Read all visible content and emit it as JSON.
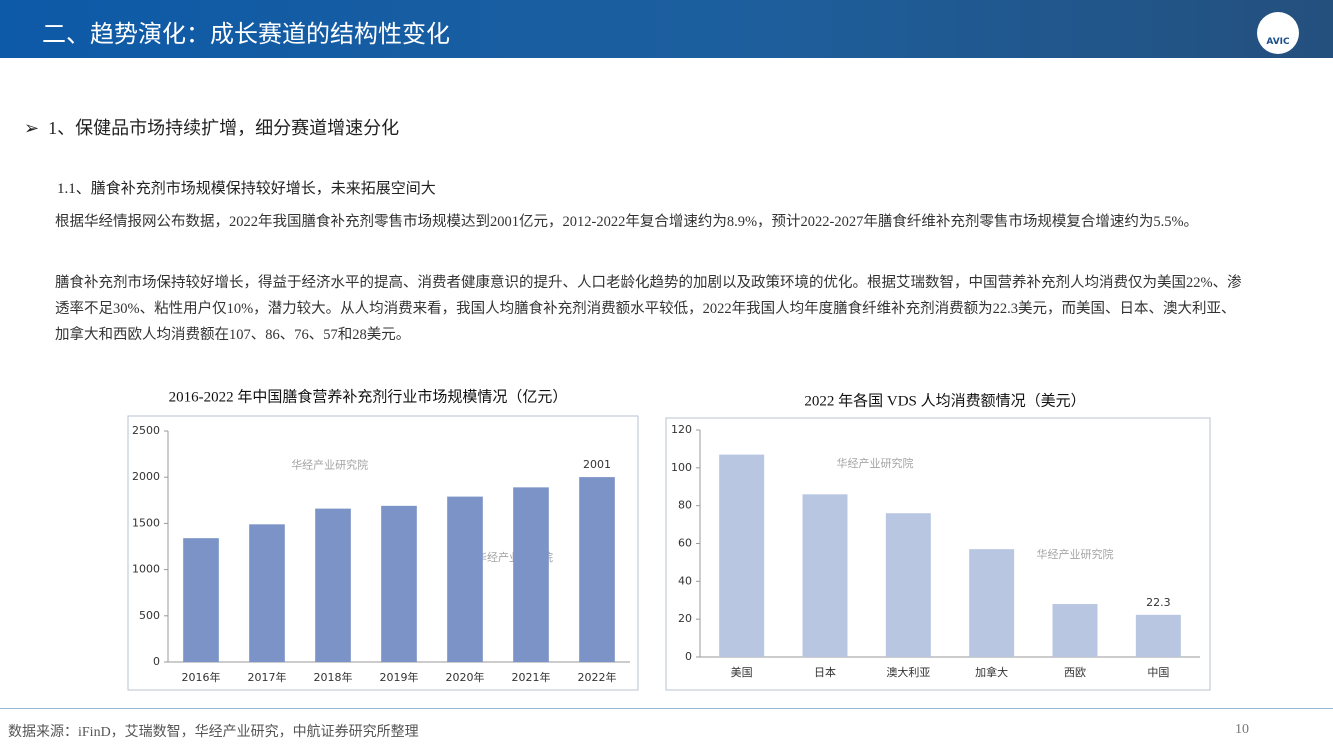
{
  "header": {
    "title": "二、趋势演化：成长赛道的结构性变化",
    "logo": "AVIC"
  },
  "section": {
    "heading": "1、保健品市场持续扩增，细分赛道增速分化",
    "subheading": "1.1、膳食补充剂市场规模保持较好增长，未来拓展空间大",
    "paragraphs": [
      "根据华经情报网公布数据，2022年我国膳食补充剂零售市场规模达到2001亿元，2012-2022年复合增速约为8.9%，预计2022-2027年膳食纤维补充剂零售市场规模复合增速约为5.5%。",
      "膳食补充剂市场保持较好增长，得益于经济水平的提高、消费者健康意识的提升、人口老龄化趋势的加剧以及政策环境的优化。根据艾瑞数智，中国营养补充剂人均消费仅为美国22%、渗透率不足30%、粘性用户仅10%，潜力较大。从人均消费来看，我国人均膳食补充剂消费额水平较低，2022年我国人均年度膳食纤维补充剂消费额为22.3美元，而美国、日本、澳大利亚、加拿大和西欧人均消费额在107、86、76、57和28美元。"
    ]
  },
  "chart_data": [
    {
      "type": "bar",
      "title": "2016-2022 年中国膳食营养补充剂行业市场规模情况（亿元）",
      "watermark": "华经产业研究院",
      "categories": [
        "2016年",
        "2017年",
        "2018年",
        "2019年",
        "2020年",
        "2021年",
        "2022年"
      ],
      "values": [
        1340,
        1490,
        1660,
        1690,
        1790,
        1890,
        2001
      ],
      "value_labels": [
        null,
        null,
        null,
        null,
        null,
        null,
        "2001"
      ],
      "color": "#7b93c6",
      "ylim": [
        0,
        2500
      ],
      "yticks": [
        0,
        500,
        1000,
        1500,
        2000,
        2500
      ]
    },
    {
      "type": "bar",
      "title": "2022 年各国 VDS 人均消费额情况（美元）",
      "watermark": "华经产业研究院",
      "categories": [
        "美国",
        "日本",
        "澳大利亚",
        "加拿大",
        "西欧",
        "中国"
      ],
      "values": [
        107,
        86,
        76,
        57,
        28,
        22.3
      ],
      "value_labels": [
        null,
        null,
        null,
        null,
        null,
        "22.3"
      ],
      "color": "#b8c6e2",
      "ylim": [
        0,
        120
      ],
      "yticks": [
        0,
        20,
        40,
        60,
        80,
        100,
        120
      ]
    }
  ],
  "footer": {
    "source": "数据来源：iFinD，艾瑞数智，华经产业研究，中航证券研究所整理",
    "page": 10
  }
}
